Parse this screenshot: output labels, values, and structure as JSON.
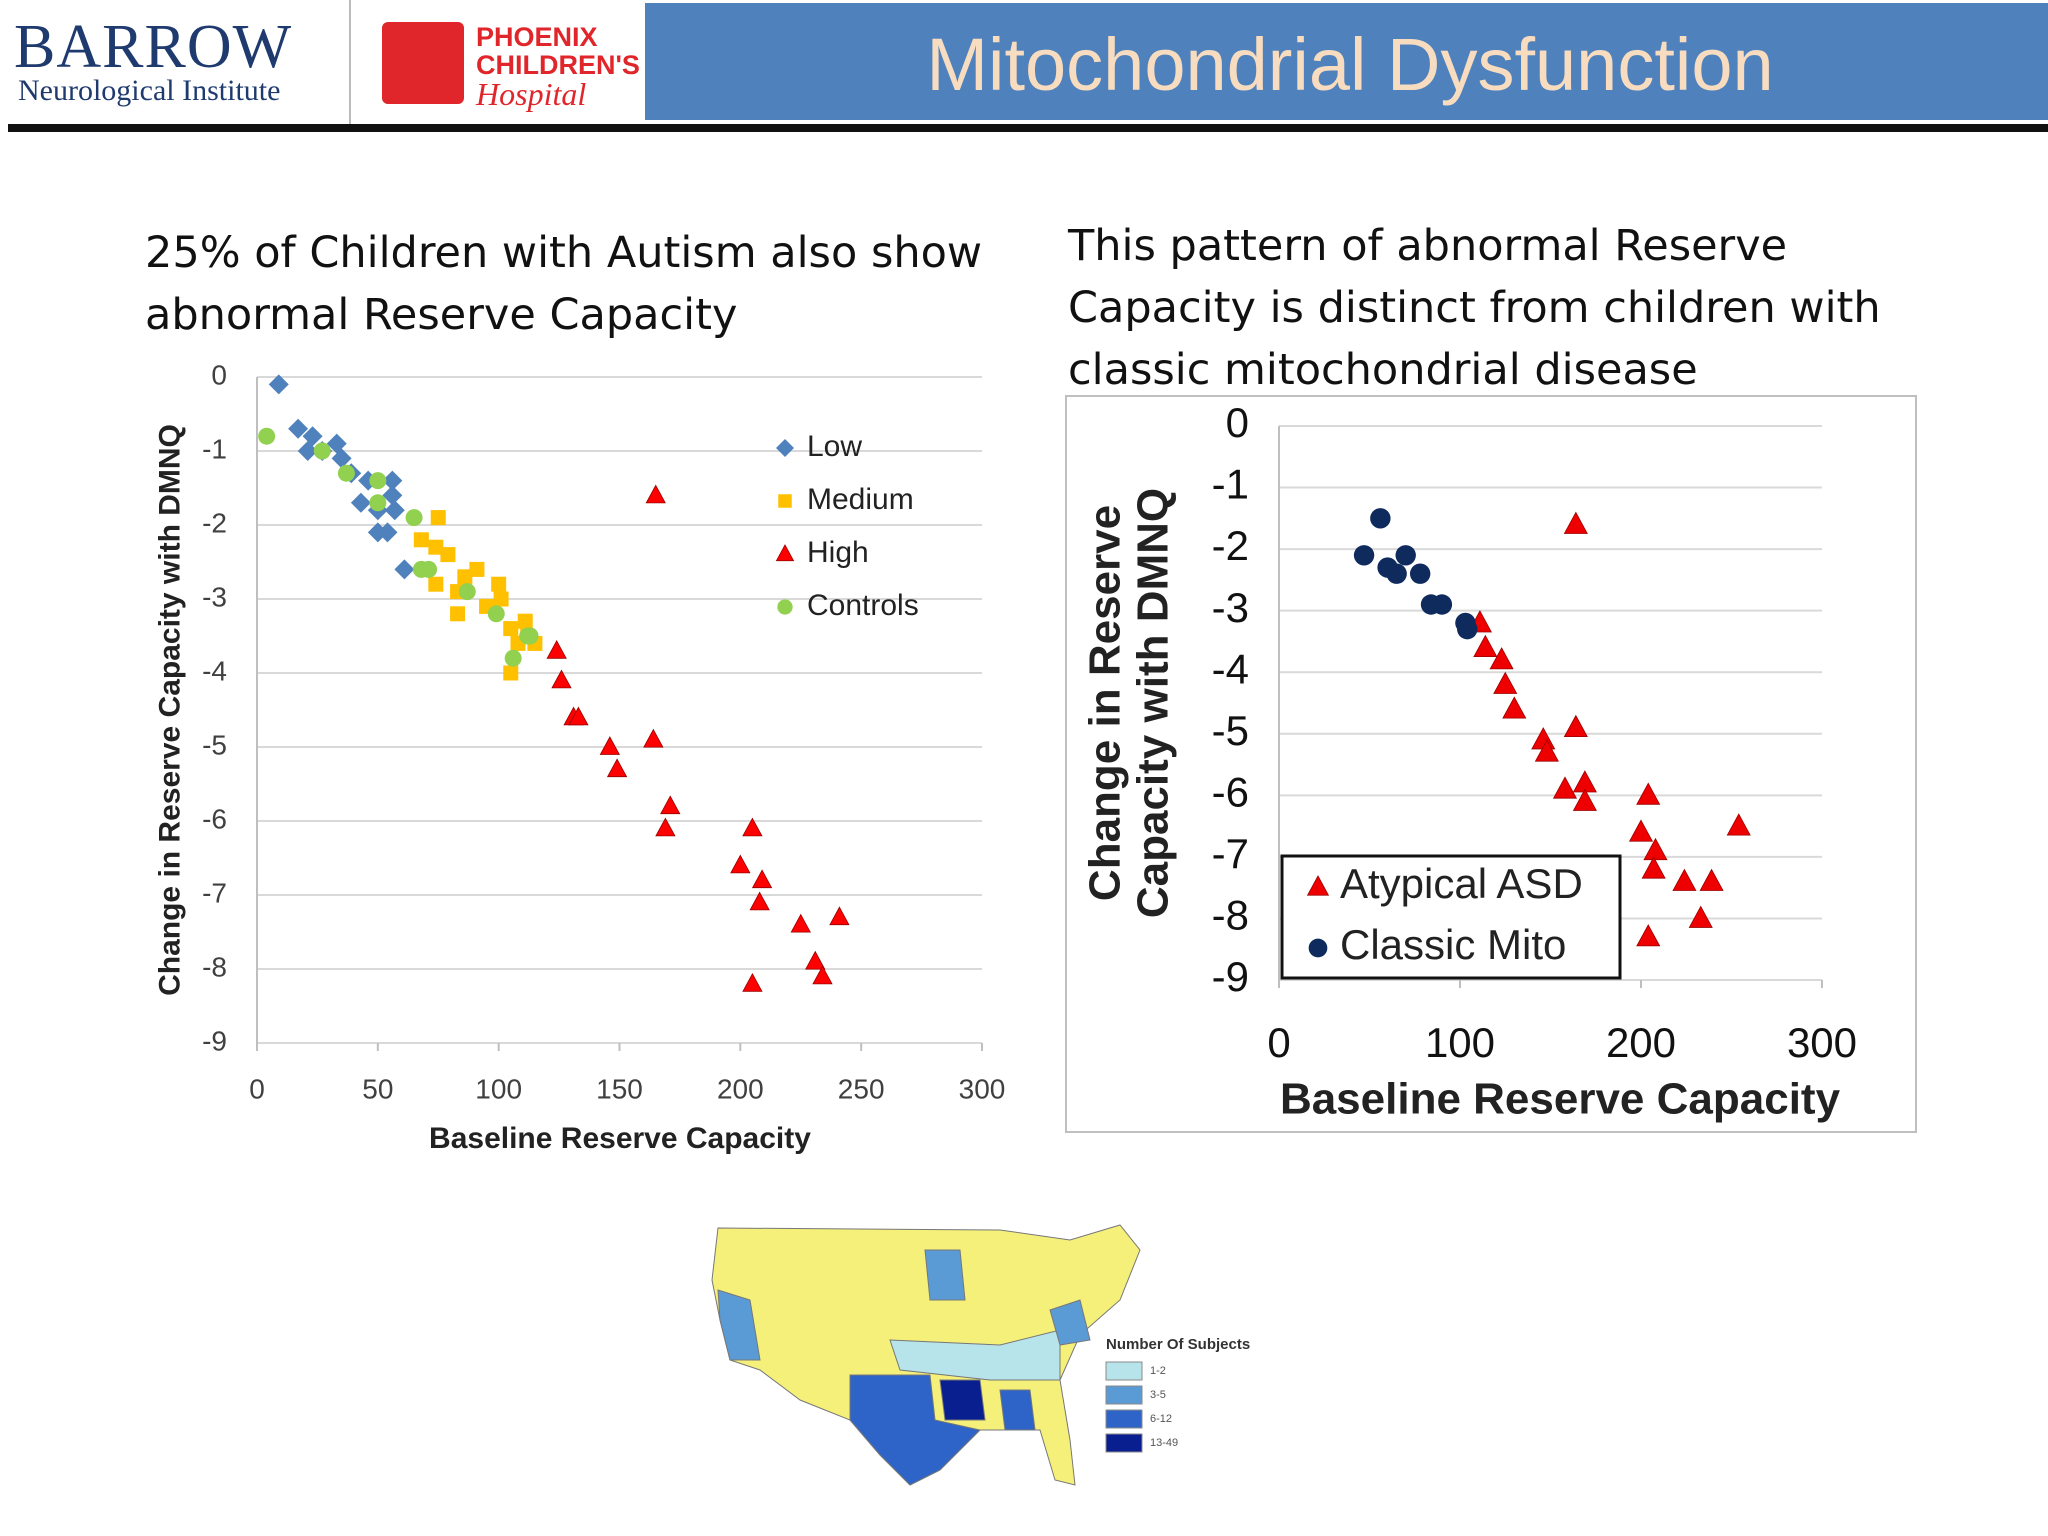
{
  "header": {
    "brand": "BARROW",
    "brand_subtitle": "Neurological Institute",
    "hospital_line_1": "PHOENIX",
    "hospital_line_2": "CHILDREN'S",
    "hospital_line_3": "Hospital",
    "title": "Mitochondrial Dysfunction"
  },
  "chart_data": [
    {
      "type": "scatter",
      "title": "25% of Children with Autism also show abnormal Reserve Capacity",
      "x_label": "Baseline Reserve Capacity",
      "y_label": "Change in Reserve Capacity with DMNQ",
      "xlim": [
        0,
        300
      ],
      "xticks": [
        0,
        50,
        100,
        150,
        200,
        250,
        300
      ],
      "ylim": [
        -9,
        0
      ],
      "yticks": [
        0,
        -1,
        -2,
        -3,
        -4,
        -5,
        -6,
        -7,
        -8,
        -9
      ],
      "grid": true,
      "legend": "upper right",
      "series": [
        {
          "name": "Low",
          "color": "#4f81bd",
          "marker": "diamond",
          "x": [
            9,
            17,
            23,
            21,
            33,
            35,
            39,
            46,
            43,
            50,
            56,
            57,
            50,
            54,
            61,
            27,
            56
          ],
          "values": [
            -0.1,
            -0.7,
            -0.8,
            -1.0,
            -0.9,
            -1.1,
            -1.3,
            -1.4,
            -1.7,
            -1.8,
            -1.6,
            -1.8,
            -2.1,
            -2.1,
            -2.6,
            -1.0,
            -1.4
          ]
        },
        {
          "name": "Medium",
          "color": "#ffc000",
          "marker": "square",
          "x": [
            75,
            68,
            74,
            79,
            74,
            86,
            83,
            91,
            100,
            83,
            95,
            101,
            105,
            111,
            112,
            115,
            105,
            108
          ],
          "values": [
            -1.9,
            -2.2,
            -2.3,
            -2.4,
            -2.8,
            -2.7,
            -2.9,
            -2.6,
            -2.8,
            -3.2,
            -3.1,
            -3.0,
            -3.4,
            -3.3,
            -3.5,
            -3.6,
            -4.0,
            -3.6
          ]
        },
        {
          "name": "High",
          "color": "#ff0000",
          "marker": "triangle",
          "x": [
            165,
            124,
            126,
            131,
            133,
            146,
            149,
            164,
            171,
            169,
            205,
            200,
            209,
            208,
            225,
            241,
            231,
            234,
            205
          ],
          "values": [
            -1.6,
            -3.7,
            -4.1,
            -4.6,
            -4.6,
            -5.0,
            -5.3,
            -4.9,
            -5.8,
            -6.1,
            -6.1,
            -6.6,
            -6.8,
            -7.1,
            -7.4,
            -7.3,
            -7.9,
            -8.1,
            -8.2
          ]
        },
        {
          "name": "Controls",
          "color": "#92d050",
          "marker": "circle",
          "x": [
            4,
            27,
            37,
            50,
            50,
            65,
            68,
            71,
            87,
            99,
            112,
            106,
            113
          ],
          "values": [
            -0.8,
            -1.0,
            -1.3,
            -1.4,
            -1.7,
            -1.9,
            -2.6,
            -2.6,
            -2.9,
            -3.2,
            -3.5,
            -3.8,
            -3.5
          ]
        }
      ]
    },
    {
      "type": "scatter",
      "title": "This pattern of abnormal Reserve Capacity is distinct from children with classic mitochondrial disease",
      "x_label": "Baseline Reserve Capacity",
      "y_label": "Change in Reserve Capacity with DMNQ",
      "xlim": [
        0,
        300
      ],
      "xticks": [
        0,
        100,
        200,
        300
      ],
      "ylim": [
        -9,
        0
      ],
      "yticks": [
        0,
        -1,
        -2,
        -3,
        -4,
        -5,
        -6,
        -7,
        -8,
        -9
      ],
      "grid": true,
      "legend": "lower left",
      "series": [
        {
          "name": "Atypical ASD",
          "color": "#ee0000",
          "marker": "triangle",
          "x": [
            164,
            111,
            114,
            123,
            125,
            130,
            146,
            148,
            164,
            158,
            169,
            169,
            204,
            200,
            208,
            207,
            224,
            239,
            233,
            204,
            254
          ],
          "values": [
            -1.6,
            -3.2,
            -3.6,
            -3.8,
            -4.2,
            -4.6,
            -5.1,
            -5.3,
            -4.9,
            -5.9,
            -5.8,
            -6.1,
            -6.0,
            -6.6,
            -6.9,
            -7.2,
            -7.4,
            -7.4,
            -8.0,
            -8.3,
            -6.5
          ]
        },
        {
          "name": "Classic Mito",
          "color": "#0f2a5c",
          "marker": "circle",
          "x": [
            56,
            47,
            60,
            65,
            70,
            78,
            84,
            90,
            103,
            104
          ],
          "values": [
            -1.5,
            -2.1,
            -2.3,
            -2.4,
            -2.1,
            -2.4,
            -2.9,
            -2.9,
            -3.2,
            -3.3
          ]
        }
      ]
    }
  ],
  "map": {
    "legend_title": "Number Of Subjects",
    "legend": [
      {
        "label": "1-2",
        "color": "#b7e4ea"
      },
      {
        "label": "3-5",
        "color": "#5b9bd5"
      },
      {
        "label": "6-12",
        "color": "#2e64c8"
      },
      {
        "label": "13-49",
        "color": "#0a1f8f"
      }
    ]
  }
}
